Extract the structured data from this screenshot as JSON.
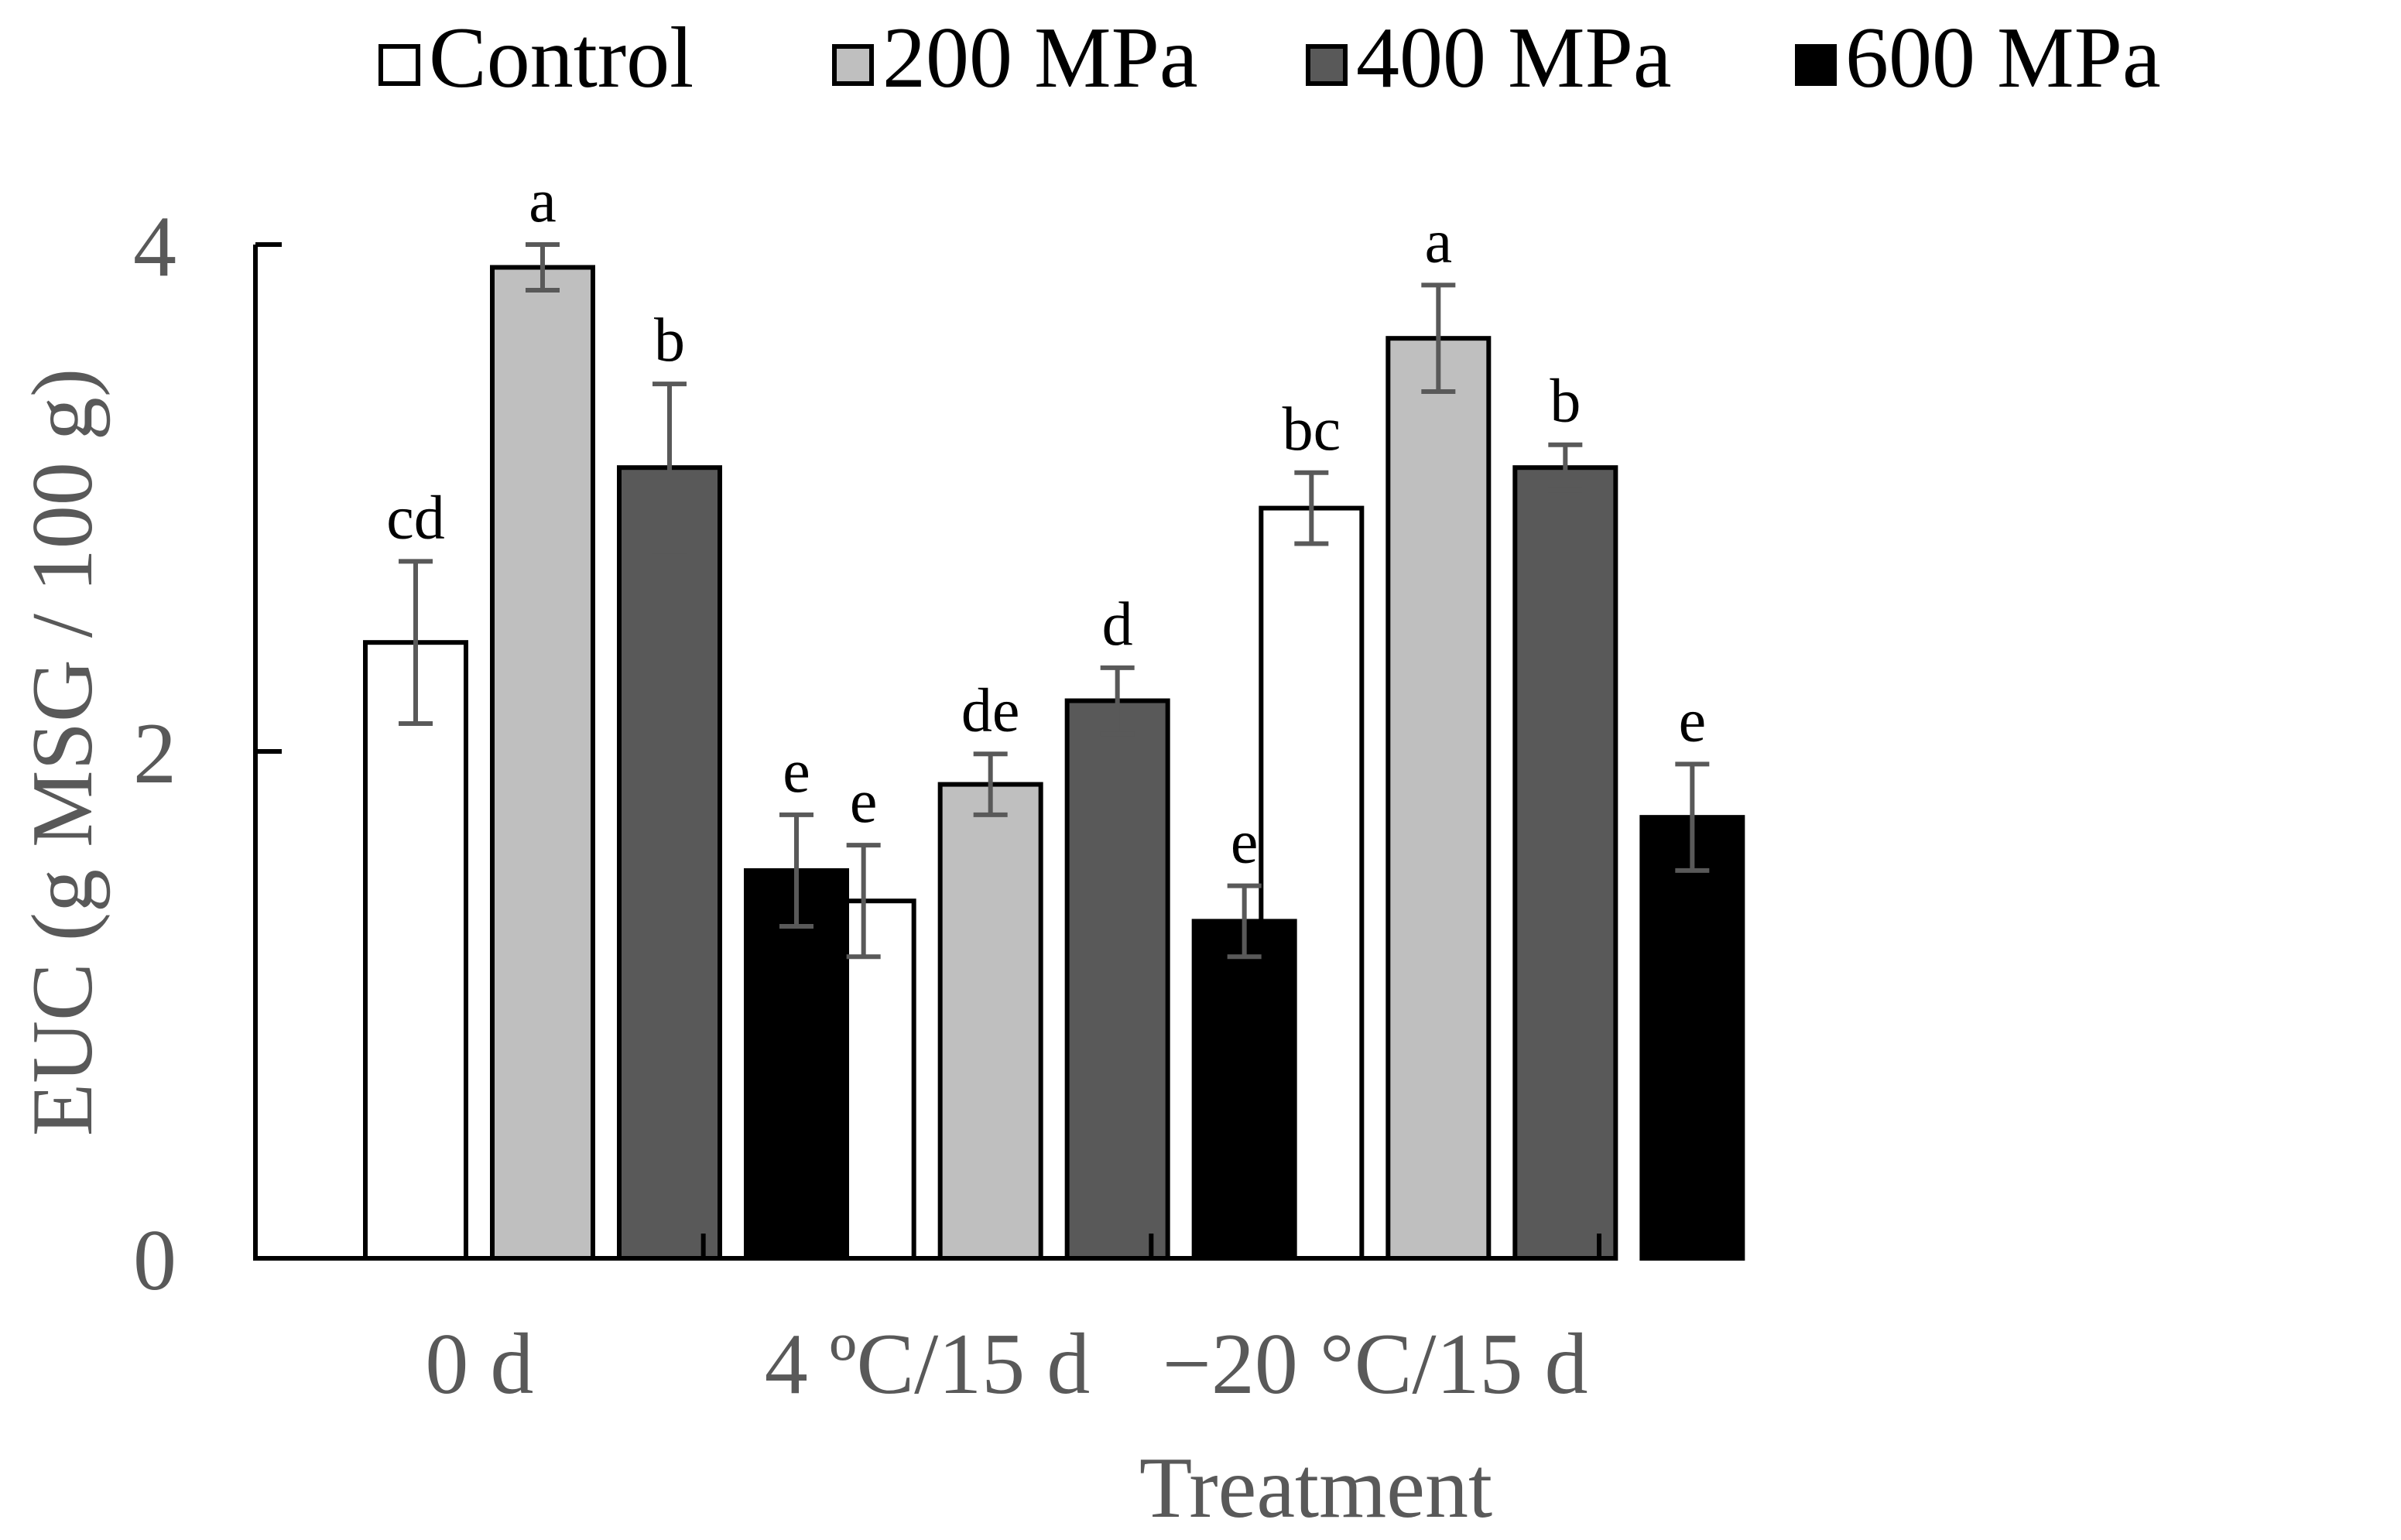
{
  "chart_data": {
    "type": "bar",
    "title": "",
    "xlabel": "Treatment",
    "ylabel": "EUC (g MSG / 100 g)",
    "ylim": [
      0,
      4
    ],
    "yticks": [
      "0",
      "2",
      "4"
    ],
    "categories": [
      "0 d",
      "4 ºC/15 d",
      "−20 °C/15 d"
    ],
    "legend_position": "top",
    "grid": false,
    "series": [
      {
        "name": "Control",
        "color": "#ffffff",
        "values": [
          2.43,
          1.41,
          2.96
        ],
        "errors": [
          0.32,
          0.22,
          0.14
        ],
        "letters": [
          "cd",
          "e",
          "bc"
        ]
      },
      {
        "name": "200 MPa",
        "color": "#bfbfbf",
        "values": [
          3.91,
          1.87,
          3.63
        ],
        "errors": [
          0.09,
          0.12,
          0.21
        ],
        "letters": [
          "a",
          "de",
          "a"
        ]
      },
      {
        "name": "400 MPa",
        "color": "#595959",
        "values": [
          3.12,
          2.2,
          3.12
        ],
        "errors": [
          0.33,
          0.13,
          0.09
        ],
        "letters": [
          "b",
          "d",
          "b"
        ]
      },
      {
        "name": "600 MPa",
        "color": "#000000",
        "values": [
          1.53,
          1.33,
          1.74
        ],
        "errors": [
          0.22,
          0.14,
          0.21
        ],
        "letters": [
          "e",
          "e",
          "e"
        ]
      }
    ]
  }
}
